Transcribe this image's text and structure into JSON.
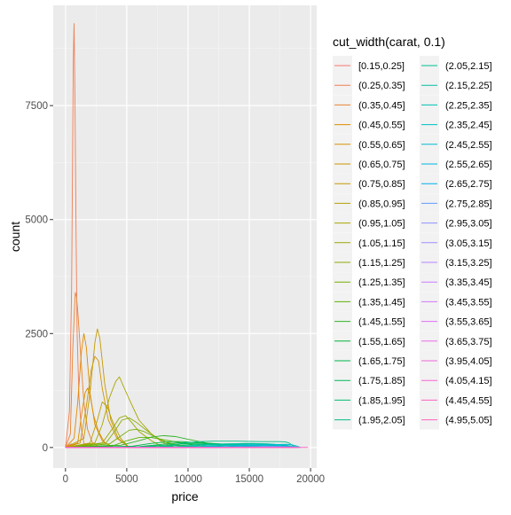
{
  "chart_data": {
    "type": "line",
    "title": "",
    "xlabel": "price",
    "ylabel": "count",
    "xlim": [
      -1000,
      20500
    ],
    "ylim": [
      -450,
      9700
    ],
    "grid": true,
    "x_ticks": [
      0,
      5000,
      10000,
      15000,
      20000
    ],
    "x_tick_labels": [
      "0",
      "5000",
      "10000",
      "15000",
      "20000"
    ],
    "y_ticks": [
      0,
      2500,
      5000,
      7500
    ],
    "y_tick_labels": [
      "0",
      "2500",
      "5000",
      "7500"
    ],
    "legend": {
      "title": "cut_width(carat, 0.1)",
      "placement": "right",
      "columns": 2
    },
    "series": [
      {
        "name": "[0.15,0.25]",
        "color": "#F8766D",
        "x": [
          0,
          326,
          500,
          700,
          900
        ],
        "y": [
          0,
          60,
          80,
          20,
          0
        ]
      },
      {
        "name": "(0.25,0.35]",
        "color": "#F27D53",
        "x": [
          0,
          326,
          500,
          580,
          640,
          700,
          780,
          860,
          950,
          1100,
          1300,
          1500,
          1800
        ],
        "y": [
          0,
          800,
          3500,
          6400,
          8500,
          9300,
          7500,
          4800,
          2500,
          1100,
          400,
          100,
          0
        ]
      },
      {
        "name": "(0.35,0.45]",
        "color": "#EA8331",
        "x": [
          0,
          400,
          600,
          800,
          900,
          1000,
          1200,
          1500,
          1800,
          2200,
          2800
        ],
        "y": [
          0,
          300,
          2200,
          3400,
          3300,
          3000,
          2200,
          1000,
          400,
          100,
          0
        ]
      },
      {
        "name": "(0.45,0.55]",
        "color": "#E08B00",
        "x": [
          0,
          700,
          1000,
          1300,
          1500,
          1700,
          2000,
          2400,
          3000,
          3800
        ],
        "y": [
          0,
          200,
          1000,
          2100,
          2500,
          2200,
          1200,
          500,
          150,
          0
        ]
      },
      {
        "name": "(0.55,0.65]",
        "color": "#D89000",
        "x": [
          0,
          1000,
          1300,
          1600,
          1800,
          2000,
          2300,
          2700,
          3200,
          4000
        ],
        "y": [
          0,
          100,
          700,
          1200,
          1300,
          1150,
          700,
          350,
          100,
          0
        ]
      },
      {
        "name": "(0.65,0.75]",
        "color": "#CF9400",
        "x": [
          0,
          1200,
          1700,
          2100,
          2400,
          2700,
          3000,
          3500,
          4200,
          5200
        ],
        "y": [
          0,
          100,
          900,
          1700,
          2000,
          1900,
          1300,
          600,
          200,
          0
        ]
      },
      {
        "name": "(0.75,0.85]",
        "color": "#C49A00",
        "x": [
          0,
          1500,
          2000,
          2400,
          2600,
          2800,
          3200,
          3700,
          4300,
          5200
        ],
        "y": [
          0,
          200,
          1200,
          2300,
          2600,
          2400,
          1400,
          600,
          200,
          0
        ]
      },
      {
        "name": "(0.85,0.95]",
        "color": "#B79F00",
        "x": [
          0,
          2000,
          2600,
          3000,
          3400,
          3800,
          4500,
          5200
        ],
        "y": [
          0,
          100,
          600,
          1000,
          900,
          600,
          200,
          0
        ]
      },
      {
        "name": "(0.95,1.05]",
        "color": "#A9A400",
        "x": [
          0,
          2400,
          3000,
          3600,
          4100,
          4400,
          4800,
          5300,
          6000,
          7000,
          8000,
          9000
        ],
        "y": [
          0,
          100,
          500,
          1100,
          1450,
          1550,
          1300,
          1000,
          600,
          300,
          100,
          0
        ]
      },
      {
        "name": "(1.05,1.15]",
        "color": "#9AA800",
        "x": [
          0,
          3000,
          3800,
          4400,
          4900,
          5400,
          6000,
          7000,
          8000
        ],
        "y": [
          0,
          100,
          400,
          650,
          700,
          550,
          350,
          150,
          0
        ]
      },
      {
        "name": "(1.15,1.25]",
        "color": "#8AAB00",
        "x": [
          0,
          3300,
          4000,
          4600,
          5200,
          5800,
          6500,
          7500,
          8500,
          10000
        ],
        "y": [
          0,
          100,
          350,
          600,
          650,
          550,
          400,
          200,
          80,
          0
        ]
      },
      {
        "name": "(1.25,1.35]",
        "color": "#75AF00",
        "x": [
          0,
          3600,
          4500,
          5200,
          5800,
          6400,
          7200,
          8200,
          9500,
          11000
        ],
        "y": [
          0,
          80,
          250,
          380,
          400,
          350,
          250,
          120,
          40,
          0
        ]
      },
      {
        "name": "(1.35,1.45]",
        "color": "#5BB300",
        "x": [
          0,
          4000,
          5000,
          6000,
          7000,
          8000,
          9500,
          11000,
          12500
        ],
        "y": [
          0,
          50,
          150,
          220,
          220,
          170,
          100,
          40,
          0
        ]
      },
      {
        "name": "(1.45,1.55]",
        "color": "#31B425",
        "x": [
          0,
          4500,
          6000,
          7000,
          8000,
          9000,
          10000,
          11500,
          13000,
          14500
        ],
        "y": [
          0,
          50,
          150,
          230,
          260,
          240,
          180,
          100,
          40,
          0
        ]
      },
      {
        "name": "(1.55,1.65]",
        "color": "#00B638",
        "x": [
          0,
          5500,
          7000,
          8500,
          9500,
          10500,
          12000,
          13500,
          15000
        ],
        "y": [
          0,
          30,
          90,
          130,
          130,
          110,
          70,
          30,
          0
        ]
      },
      {
        "name": "(1.65,1.75]",
        "color": "#00B74B",
        "x": [
          0,
          6000,
          7500,
          9000,
          10500,
          12000,
          13500,
          15000,
          16500
        ],
        "y": [
          0,
          20,
          60,
          100,
          110,
          90,
          60,
          25,
          0
        ]
      },
      {
        "name": "(1.75,1.85]",
        "color": "#00BA5A",
        "x": [
          0,
          6500,
          8000,
          9500,
          11000,
          12500,
          14000,
          15500,
          17000
        ],
        "y": [
          0,
          20,
          50,
          80,
          90,
          80,
          55,
          25,
          0
        ]
      },
      {
        "name": "(1.85,1.95]",
        "color": "#00BC70",
        "x": [
          0,
          7000,
          8500,
          10000,
          11500,
          13000,
          14500,
          16000,
          17500
        ],
        "y": [
          0,
          15,
          35,
          60,
          70,
          65,
          45,
          20,
          0
        ]
      },
      {
        "name": "(1.95,2.05]",
        "color": "#00BE83",
        "x": [
          0,
          8000,
          9000,
          10000,
          11000,
          12000,
          13000,
          14000,
          15000,
          16000,
          17000,
          17500,
          18000,
          18300,
          18600,
          19000
        ],
        "y": [
          0,
          20,
          70,
          110,
          130,
          140,
          140,
          140,
          135,
          130,
          130,
          130,
          120,
          90,
          30,
          0
        ]
      },
      {
        "name": "(2.05,2.15]",
        "color": "#00C094",
        "x": [
          0,
          9000,
          11000,
          13000,
          15000,
          16500,
          17500,
          18200,
          18800,
          19000
        ],
        "y": [
          0,
          20,
          60,
          80,
          90,
          80,
          60,
          40,
          10,
          0
        ]
      },
      {
        "name": "(2.15,2.25]",
        "color": "#00C0A4",
        "x": [
          0,
          9500,
          11500,
          13500,
          15500,
          17000,
          18000,
          18600,
          19000
        ],
        "y": [
          0,
          15,
          50,
          70,
          80,
          70,
          50,
          20,
          0
        ]
      },
      {
        "name": "(2.25,2.35]",
        "color": "#00C0B4",
        "x": [
          0,
          10000,
          12000,
          14000,
          16000,
          17500,
          18500,
          19000
        ],
        "y": [
          0,
          10,
          35,
          55,
          60,
          50,
          25,
          0
        ]
      },
      {
        "name": "(2.35,2.45]",
        "color": "#00BEC3",
        "x": [
          0,
          11000,
          13000,
          15000,
          17000,
          18200,
          19000
        ],
        "y": [
          0,
          10,
          30,
          40,
          40,
          25,
          0
        ]
      },
      {
        "name": "(2.45,2.55]",
        "color": "#00BBD1",
        "x": [
          0,
          11000,
          13000,
          15000,
          17000,
          18000,
          18500,
          18900,
          19200
        ],
        "y": [
          0,
          10,
          35,
          55,
          65,
          70,
          60,
          30,
          0
        ]
      },
      {
        "name": "(2.55,2.65]",
        "color": "#00B7DE",
        "x": [
          0,
          13000,
          15000,
          17000,
          18000,
          18600,
          19000
        ],
        "y": [
          0,
          10,
          20,
          25,
          25,
          15,
          0
        ]
      },
      {
        "name": "(2.65,2.75]",
        "color": "#00B0EB",
        "x": [
          0,
          13000,
          15000,
          17000,
          18200,
          18800
        ],
        "y": [
          0,
          8,
          15,
          20,
          15,
          0
        ]
      },
      {
        "name": "(2.75,2.85]",
        "color": "#619CFF",
        "x": [
          0,
          14000,
          16000,
          17500,
          18500
        ],
        "y": [
          0,
          5,
          12,
          15,
          0
        ]
      },
      {
        "name": "(2.95,3.05]",
        "color": "#8F91FF",
        "x": [
          0,
          13000,
          15000,
          17000,
          18500,
          19200
        ],
        "y": [
          0,
          8,
          15,
          20,
          15,
          0
        ]
      },
      {
        "name": "(3.05,3.15]",
        "color": "#A58AFF",
        "x": [
          0,
          14000,
          16000,
          18000,
          19000
        ],
        "y": [
          0,
          4,
          8,
          6,
          0
        ]
      },
      {
        "name": "(3.15,3.25]",
        "color": "#B684FF",
        "x": [
          0,
          14500,
          16500,
          18000,
          19000
        ],
        "y": [
          0,
          3,
          6,
          5,
          0
        ]
      },
      {
        "name": "(3.35,3.45]",
        "color": "#C77CFF",
        "x": [
          0,
          15000,
          17000,
          18500
        ],
        "y": [
          0,
          3,
          4,
          0
        ]
      },
      {
        "name": "(3.45,3.55]",
        "color": "#D376F9",
        "x": [
          0,
          15500,
          17500,
          18800
        ],
        "y": [
          0,
          2,
          3,
          0
        ]
      },
      {
        "name": "(3.55,3.65]",
        "color": "#DF70F8",
        "x": [
          0,
          16000,
          17800,
          18800
        ],
        "y": [
          0,
          2,
          3,
          0
        ]
      },
      {
        "name": "(3.65,3.75]",
        "color": "#E86BEB",
        "x": [
          0,
          16000,
          18000,
          19000
        ],
        "y": [
          0,
          2,
          2,
          0
        ]
      },
      {
        "name": "(3.95,4.05]",
        "color": "#F066DE",
        "x": [
          0,
          15000,
          17000,
          18500
        ],
        "y": [
          0,
          2,
          3,
          0
        ]
      },
      {
        "name": "(4.05,4.15]",
        "color": "#F763CF",
        "x": [
          0,
          16000,
          18000,
          19000
        ],
        "y": [
          0,
          1,
          2,
          0
        ]
      },
      {
        "name": "(4.45,4.55]",
        "color": "#FC61BE",
        "x": [
          0,
          17000,
          18500
        ],
        "y": [
          0,
          1,
          0
        ]
      },
      {
        "name": "(4.95,5.05]",
        "color": "#FF62BC",
        "x": [
          0,
          17000,
          18000,
          18900,
          19500,
          19800
        ],
        "y": [
          0,
          0,
          0,
          0,
          2,
          0
        ]
      }
    ]
  }
}
